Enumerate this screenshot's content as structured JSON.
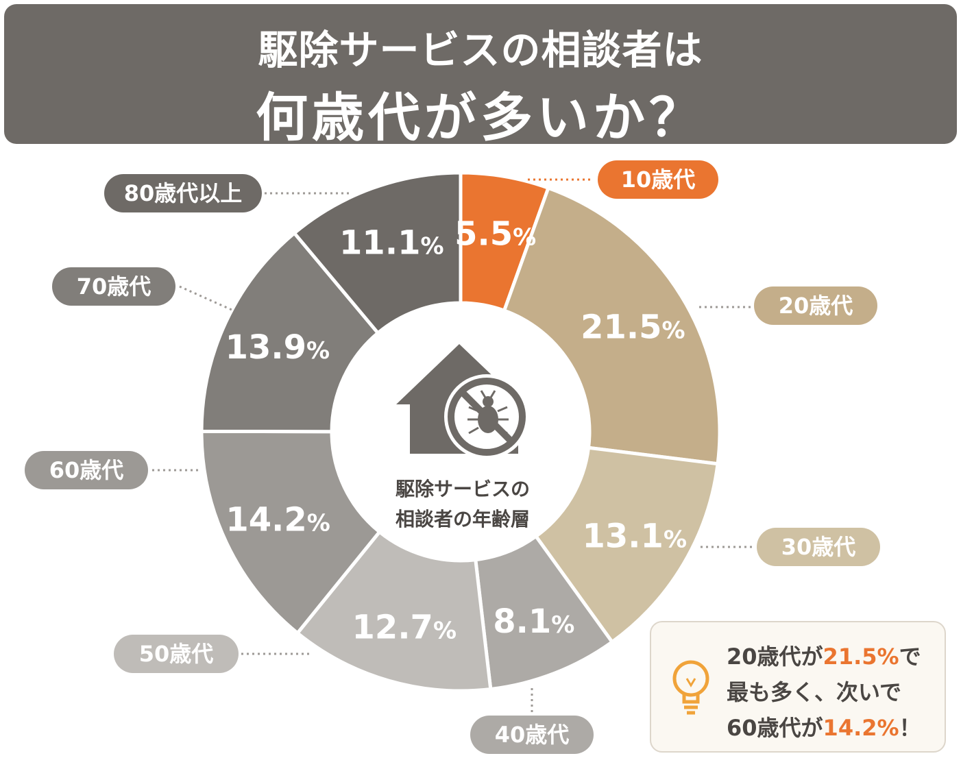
{
  "title": {
    "line1": "駆除サービスの相談者は",
    "line2": "何歳代が多いか？"
  },
  "center_label": {
    "line1": "駆除サービスの",
    "line2": "相談者の年齢層"
  },
  "chart_data": {
    "type": "pie",
    "categories": [
      "10歳代",
      "20歳代",
      "30歳代",
      "40歳代",
      "50歳代",
      "60歳代",
      "70歳代",
      "80歳代以上"
    ],
    "values": [
      5.5,
      21.5,
      13.1,
      8.1,
      12.7,
      14.2,
      13.9,
      11.1
    ],
    "value_labels": [
      "5.5",
      "21.5",
      "13.1",
      "8.1",
      "12.7",
      "14.2",
      "13.9",
      "11.1"
    ],
    "unit": "%",
    "colors": [
      "#ea7530",
      "#c4ae8a",
      "#cfc1a3",
      "#adaaa6",
      "#bfbcb8",
      "#9c9995",
      "#817e7a",
      "#6e6a66"
    ]
  },
  "callout": {
    "line1_prefix": "20歳代が",
    "line1_value": "21.5%",
    "line1_suffix": "で",
    "line2": "最も多く、次いで",
    "line3_prefix": "60歳代が",
    "line3_value": "14.2%",
    "line3_suffix": "！",
    "icon": "lightbulb-icon"
  }
}
